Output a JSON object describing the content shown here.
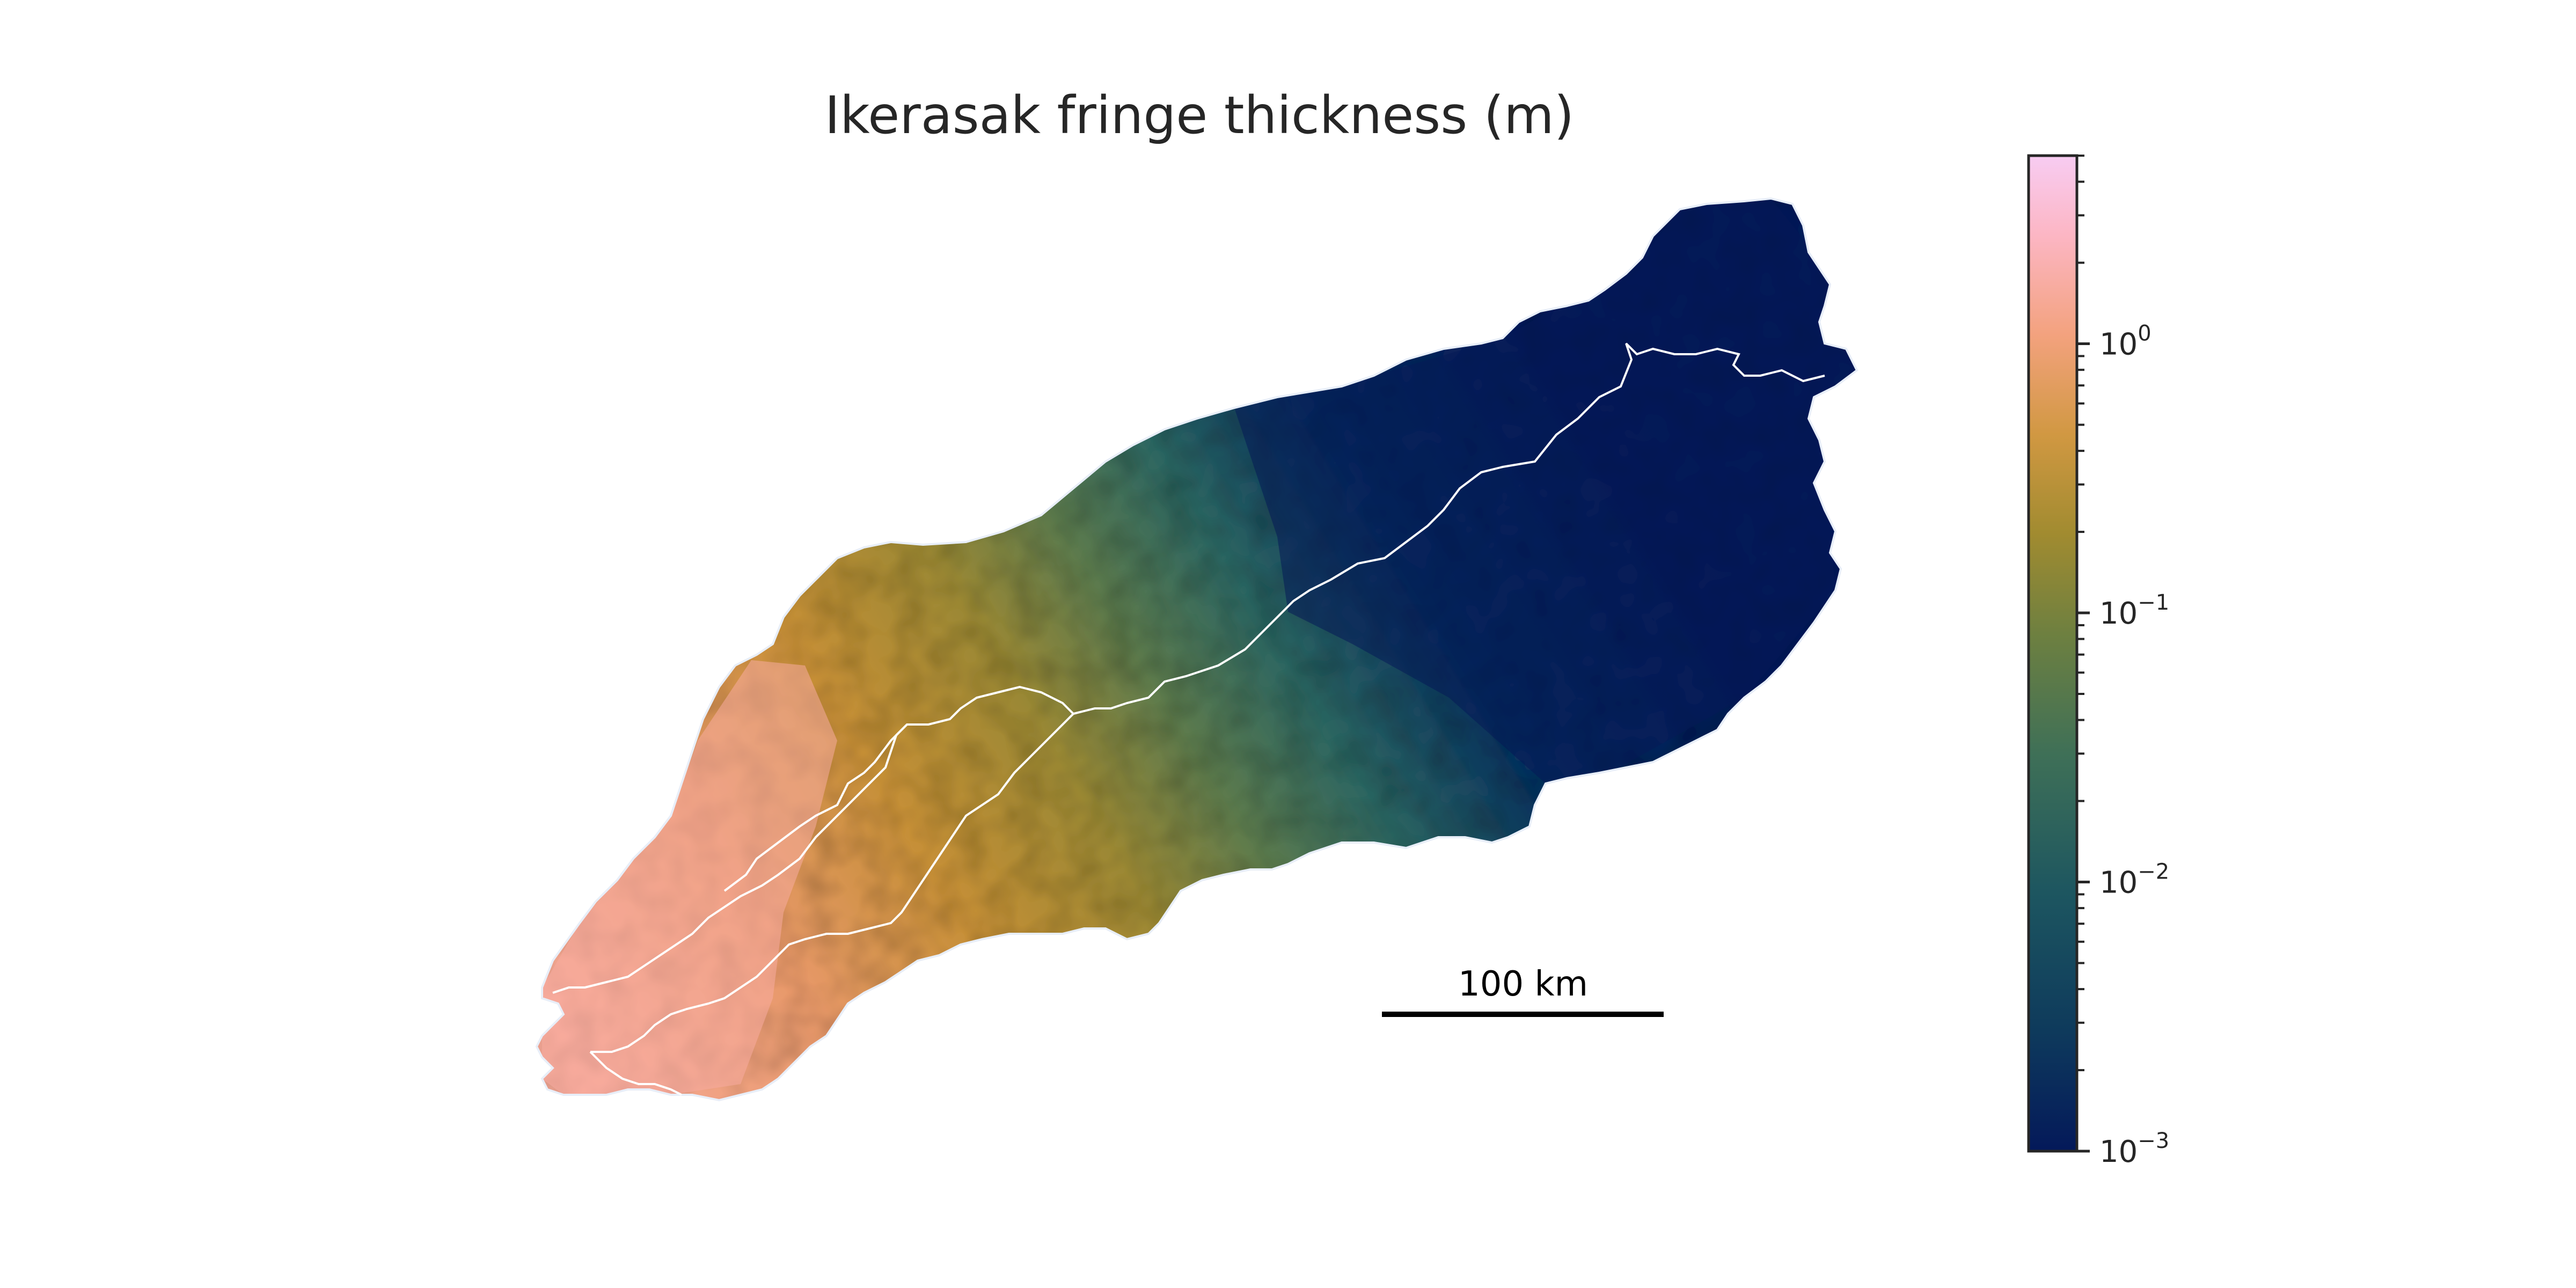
{
  "title": "Ikerasak fringe thickness (m)",
  "scalebar": {
    "label": "100 km"
  },
  "colorbar": {
    "scale": "log",
    "range": [
      0.001,
      5
    ],
    "colormap": "batlow",
    "colormap_stops": [
      "#04195a",
      "#0f4359",
      "#2c6560",
      "#577a4b",
      "#8a8833",
      "#c0932f",
      "#f0a077",
      "#fcb4bd",
      "#f8ccf2"
    ],
    "ticks": [
      {
        "base": "10",
        "exp": "0",
        "value": 1
      },
      {
        "base": "10",
        "exp": "−1",
        "value": 0.1
      },
      {
        "base": "10",
        "exp": "−2",
        "value": 0.01
      },
      {
        "base": "10",
        "exp": "−3",
        "value": 0.001
      }
    ]
  },
  "map": {
    "outline_color": "#ffffff",
    "background": "#ffffff"
  }
}
